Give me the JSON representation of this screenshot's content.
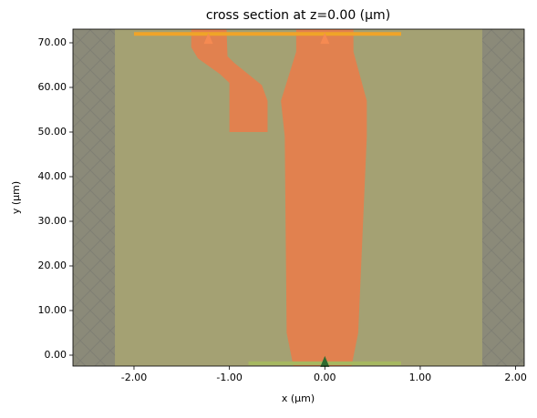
{
  "chart_data": {
    "type": "structure",
    "title": "cross section at z=0.00 (μm)",
    "xlabel": "x (μm)",
    "ylabel": "y (μm)",
    "xlim": [
      -2.64,
      2.09
    ],
    "ylim": [
      -2.45,
      73.06
    ],
    "xticks": [
      {
        "value": -2,
        "label": "-2.00"
      },
      {
        "value": -1,
        "label": "-1.00"
      },
      {
        "value": 0,
        "label": "0.00"
      },
      {
        "value": 1,
        "label": "1.00"
      },
      {
        "value": 2,
        "label": "2.00"
      }
    ],
    "yticks": [
      {
        "value": 0,
        "label": "0.00"
      },
      {
        "value": 10,
        "label": "10.00"
      },
      {
        "value": 20,
        "label": "20.00"
      },
      {
        "value": 30,
        "label": "30.00"
      },
      {
        "value": 40,
        "label": "40.00"
      },
      {
        "value": 50,
        "label": "50.00"
      },
      {
        "value": 60,
        "label": "60.00"
      },
      {
        "value": 70,
        "label": "70.00"
      }
    ],
    "shapes": [
      {
        "color": "#a4a173",
        "x": [
          -2.2,
          1.65,
          1.65,
          -2.2
        ],
        "y": [
          -2.45,
          -2.45,
          73.06,
          73.06
        ]
      },
      {
        "color": "#e1814f",
        "x": [
          -0.33,
          -0.4,
          -0.42,
          -0.46,
          -0.3,
          -0.3,
          0.3,
          0.3,
          0.44,
          0.44,
          0.35,
          0.28
        ],
        "y": [
          -2.45,
          5,
          49,
          57,
          68,
          73.06,
          73.06,
          68,
          57,
          49,
          5,
          -2.45
        ]
      },
      {
        "color": "#e1814f",
        "x": [
          -1.0,
          -0.6,
          -0.6,
          -0.66,
          -0.95,
          -1.02,
          -1.03,
          -1.4,
          -1.4,
          -1.33,
          -1.1,
          -1.0,
          -1.0
        ],
        "y": [
          50,
          50,
          57,
          60.5,
          65.5,
          67,
          73.06,
          73.06,
          69,
          66.5,
          63,
          61,
          57
        ]
      }
    ],
    "lines": [
      {
        "color": "#f0a428",
        "x": [
          -2.0,
          0.8
        ],
        "y": 72
      },
      {
        "color": "#a6b860",
        "x": [
          -0.8,
          0.8
        ],
        "y": -1.8
      }
    ],
    "arrows": [
      {
        "color": "#f58a52",
        "x": -1.22,
        "y": 71
      },
      {
        "color": "#f58a52",
        "x": 0,
        "y": 71
      },
      {
        "color": "#2e6b2e",
        "x": 0,
        "y": -1.4
      }
    ]
  }
}
